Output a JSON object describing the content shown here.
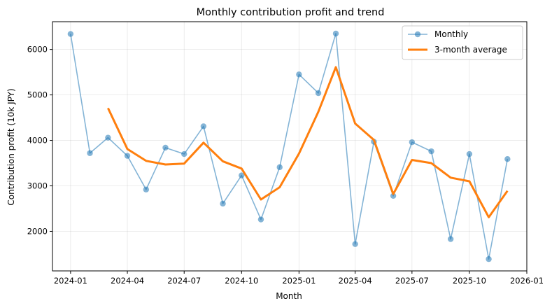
{
  "chart_data": {
    "type": "line",
    "title": "Monthly contribution profit and trend",
    "xlabel": "Month",
    "ylabel": "Contribution profit (10k JPY)",
    "x": [
      "2024-01",
      "2024-02",
      "2024-03",
      "2024-04",
      "2024-05",
      "2024-06",
      "2024-07",
      "2024-08",
      "2024-09",
      "2024-10",
      "2024-11",
      "2024-12",
      "2025-01",
      "2025-02",
      "2025-03",
      "2025-04",
      "2025-05",
      "2025-06",
      "2025-07",
      "2025-08",
      "2025-09",
      "2025-10",
      "2025-11",
      "2025-12"
    ],
    "series": [
      {
        "name": "Monthly",
        "color": "#1f77b4",
        "style": "line-with-markers",
        "values": [
          6340,
          3720,
          4060,
          3660,
          2920,
          3840,
          3700,
          4310,
          2610,
          3230,
          2260,
          3410,
          5450,
          5040,
          6350,
          1720,
          3970,
          2780,
          3960,
          3760,
          1830,
          3700,
          1390,
          3590
        ]
      },
      {
        "name": "3-month average",
        "color": "#ff7f0e",
        "style": "thick-line",
        "values": [
          null,
          null,
          4710,
          3810,
          3550,
          3470,
          3490,
          3950,
          3540,
          3380,
          2700,
          2970,
          3710,
          4630,
          5610,
          4370,
          4010,
          2820,
          3570,
          3500,
          3180,
          3100,
          2310,
          2890
        ]
      }
    ],
    "xticks": [
      "2024-01",
      "2024-04",
      "2024-07",
      "2024-10",
      "2025-01",
      "2025-04",
      "2025-07",
      "2025-10",
      "2026-01"
    ],
    "yticks": [
      2000,
      3000,
      4000,
      5000,
      6000
    ],
    "ylim": [
      1130,
      6610
    ],
    "xlim": [
      "2023-12-03",
      "2026-01-01"
    ],
    "grid": true,
    "legend_position": "upper right"
  }
}
